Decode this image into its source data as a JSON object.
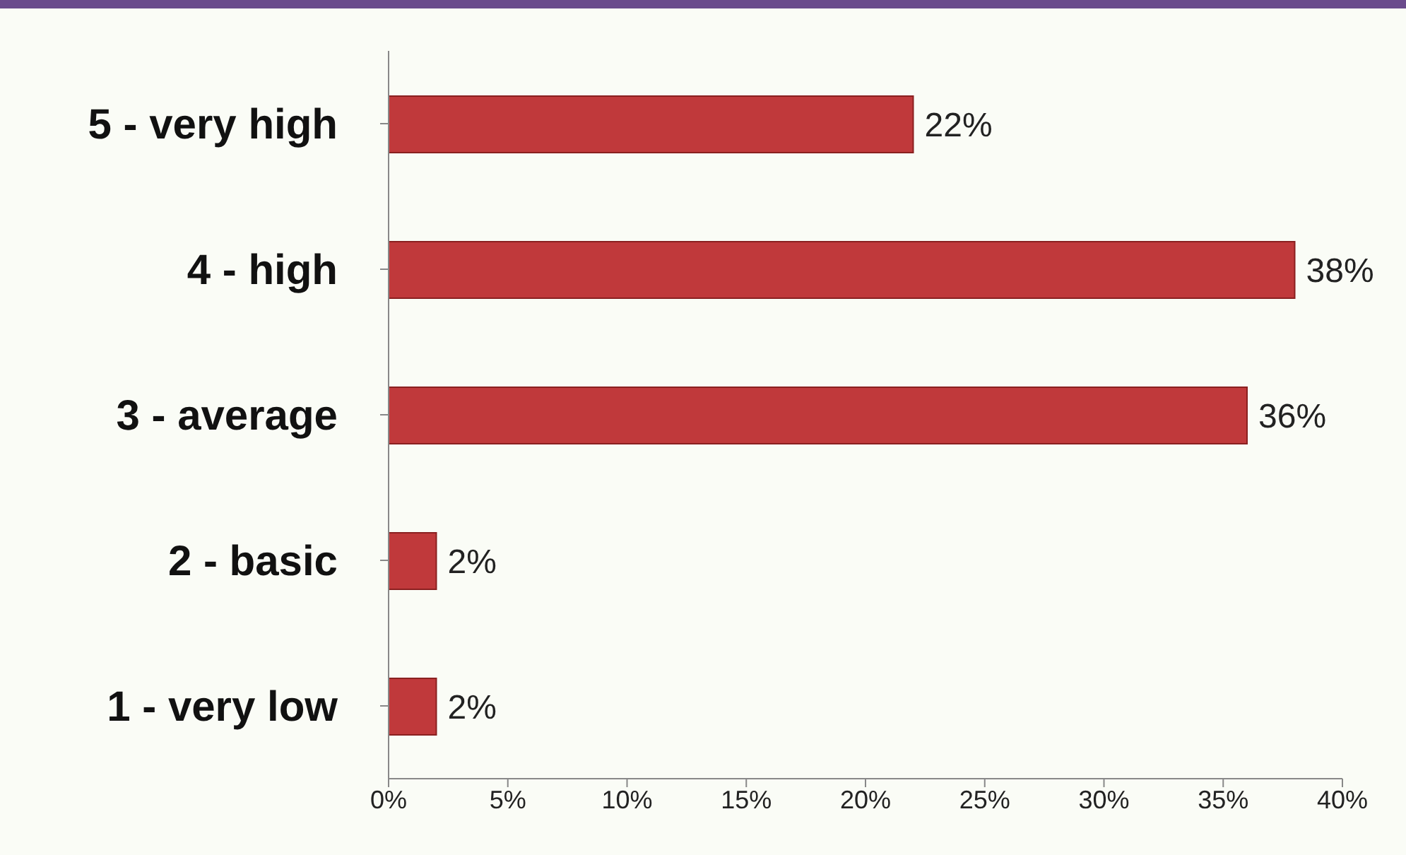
{
  "chart_data": {
    "type": "bar",
    "orientation": "horizontal",
    "categories": [
      "5 - very high",
      "4 - high",
      "3 - average",
      "2 - basic",
      "1 - very low"
    ],
    "values": [
      22,
      38,
      36,
      2,
      2
    ],
    "value_labels": [
      "22%",
      "38%",
      "36%",
      "2%",
      "2%"
    ],
    "color": "#c0393b",
    "xlim": [
      0,
      40
    ],
    "xticks": [
      {
        "value": 0,
        "label": "0%"
      },
      {
        "value": 5,
        "label": "5%"
      },
      {
        "value": 10,
        "label": "10%"
      },
      {
        "value": 15,
        "label": "15%"
      },
      {
        "value": 20,
        "label": "20%"
      },
      {
        "value": 25,
        "label": "25%"
      },
      {
        "value": 30,
        "label": "30%"
      },
      {
        "value": 35,
        "label": "35%"
      },
      {
        "value": 40,
        "label": "40%"
      }
    ],
    "grid": false
  }
}
